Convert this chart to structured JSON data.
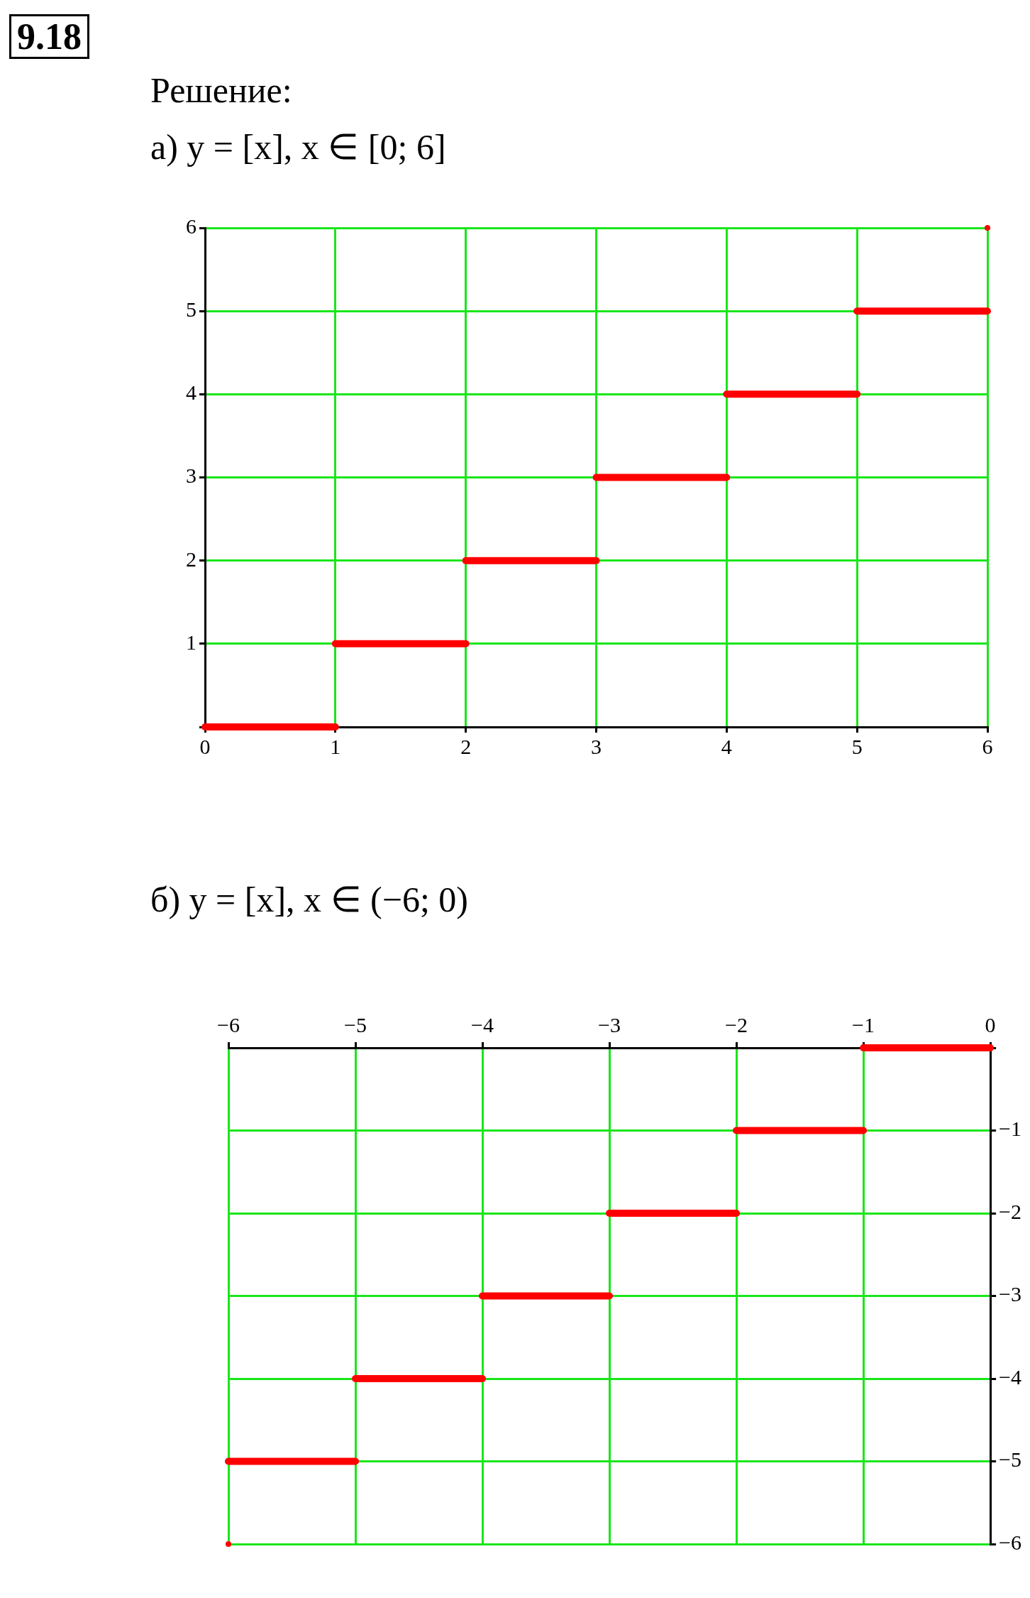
{
  "chart_data": [
    {
      "type": "line",
      "title": "а) y = [x], x ∈ [0; 6]",
      "annotations": [
        "9.18",
        "Решение:"
      ],
      "series": [
        {
          "color": "#ff0000",
          "x": [
            0,
            1
          ],
          "values": [
            0,
            0
          ]
        },
        {
          "color": "#ff0000",
          "x": [
            1,
            2
          ],
          "values": [
            1,
            1
          ]
        },
        {
          "color": "#ff0000",
          "x": [
            2,
            3
          ],
          "values": [
            2,
            2
          ]
        },
        {
          "color": "#ff0000",
          "x": [
            3,
            4
          ],
          "values": [
            3,
            3
          ]
        },
        {
          "color": "#ff0000",
          "x": [
            4,
            5
          ],
          "values": [
            4,
            4
          ]
        },
        {
          "color": "#ff0000",
          "x": [
            5,
            6
          ],
          "values": [
            5,
            5
          ]
        },
        {
          "type": "scatter",
          "color": "#ff0000",
          "x": [
            6
          ],
          "values": [
            6
          ]
        }
      ],
      "xlim": [
        0,
        6
      ],
      "ylim": [
        0,
        6
      ],
      "xticks": [
        0,
        1,
        2,
        3,
        4,
        5,
        6
      ],
      "yticks": [
        {
          "value": 0,
          "label": null
        },
        1,
        2,
        3,
        4,
        5,
        6
      ],
      "grid": true
    },
    {
      "type": "line",
      "title": "б) y = [x], x ∈ (−6; 0)",
      "series": [
        {
          "color": "#ff0000",
          "x": [
            -1,
            0
          ],
          "values": [
            0,
            0
          ]
        },
        {
          "color": "#ff0000",
          "x": [
            -2,
            -1
          ],
          "values": [
            -1,
            -1
          ]
        },
        {
          "color": "#ff0000",
          "x": [
            -3,
            -2
          ],
          "values": [
            -2,
            -2
          ]
        },
        {
          "color": "#ff0000",
          "x": [
            -4,
            -3
          ],
          "values": [
            -3,
            -3
          ]
        },
        {
          "color": "#ff0000",
          "x": [
            -5,
            -4
          ],
          "values": [
            -4,
            -4
          ]
        },
        {
          "color": "#ff0000",
          "x": [
            -6,
            -5
          ],
          "values": [
            -5,
            -5
          ]
        },
        {
          "type": "scatter",
          "color": "#ff0000",
          "x": [
            -6
          ],
          "values": [
            -6
          ]
        }
      ],
      "xlim": [
        -6,
        0
      ],
      "ylim": [
        -6,
        0
      ],
      "xticks": [
        {
          "value": -6,
          "label": "−6"
        },
        {
          "value": -5,
          "label": "−5"
        },
        {
          "value": -4,
          "label": "−4"
        },
        {
          "value": -3,
          "label": "−3"
        },
        {
          "value": -2,
          "label": "−2"
        },
        {
          "value": -1,
          "label": "−1"
        },
        0
      ],
      "yticks": [
        {
          "value": 0,
          "label": null
        },
        {
          "value": -1,
          "label": "−1"
        },
        {
          "value": -2,
          "label": "−2"
        },
        {
          "value": -3,
          "label": "−3"
        },
        {
          "value": -4,
          "label": "−4"
        },
        {
          "value": -5,
          "label": "−5"
        },
        {
          "value": -6,
          "label": "−6"
        }
      ],
      "grid": true
    }
  ]
}
